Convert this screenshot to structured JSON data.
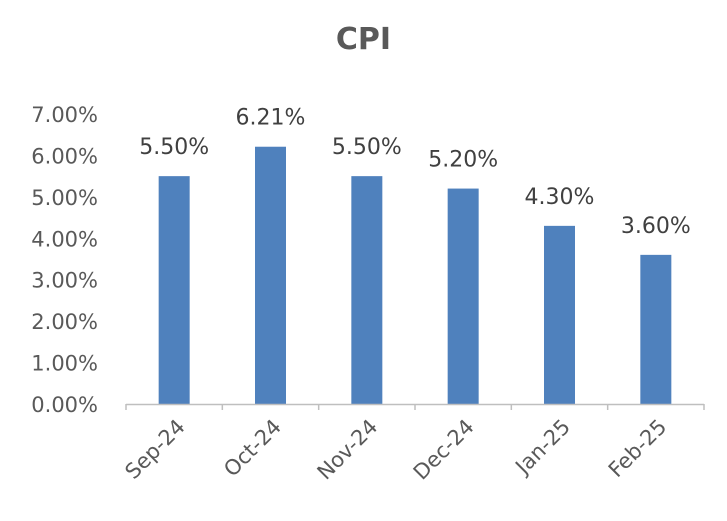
{
  "chart_data": {
    "type": "bar",
    "title": "CPI",
    "categories": [
      "Sep-24",
      "Oct-24",
      "Nov-24",
      "Dec-24",
      "Jan-25",
      "Feb-25"
    ],
    "values": [
      5.5,
      6.21,
      5.5,
      5.2,
      4.3,
      3.6
    ],
    "data_labels": [
      "5.50%",
      "6.21%",
      "5.50%",
      "5.20%",
      "4.30%",
      "3.60%"
    ],
    "y_ticks": [
      0,
      1,
      2,
      3,
      4,
      5,
      6,
      7
    ],
    "y_tick_labels": [
      "0.00%",
      "1.00%",
      "2.00%",
      "3.00%",
      "4.00%",
      "5.00%",
      "6.00%",
      "7.00%"
    ],
    "xlabel": "",
    "ylabel": "",
    "ylim": [
      0,
      7
    ],
    "grid": false,
    "legend": "none",
    "bar_color": "#4f81bd",
    "text_color": "#595959",
    "axis_color": "#bfbfbf"
  }
}
